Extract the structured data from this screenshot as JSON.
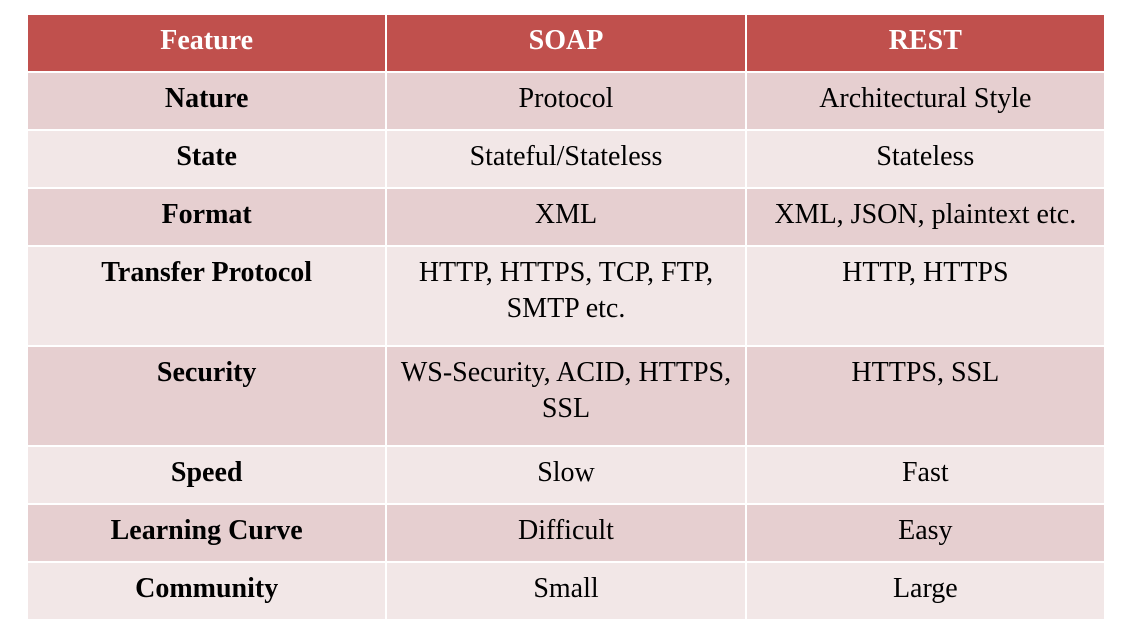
{
  "table": {
    "header": [
      "Feature",
      "SOAP",
      "REST"
    ],
    "rows": [
      [
        "Nature",
        "Protocol",
        "Architectural Style"
      ],
      [
        "State",
        "Stateful/Stateless",
        "Stateless"
      ],
      [
        "Format",
        "XML",
        "XML, JSON, plaintext etc."
      ],
      [
        "Transfer Protocol",
        "HTTP, HTTPS, TCP, FTP, SMTP etc.",
        "HTTP, HTTPS"
      ],
      [
        "Security",
        "WS-Security, ACID, HTTPS, SSL",
        "HTTPS, SSL"
      ],
      [
        "Speed",
        "Slow",
        "Fast"
      ],
      [
        "Learning Curve",
        "Difficult",
        "Easy"
      ],
      [
        "Community",
        "Small",
        "Large"
      ]
    ]
  }
}
